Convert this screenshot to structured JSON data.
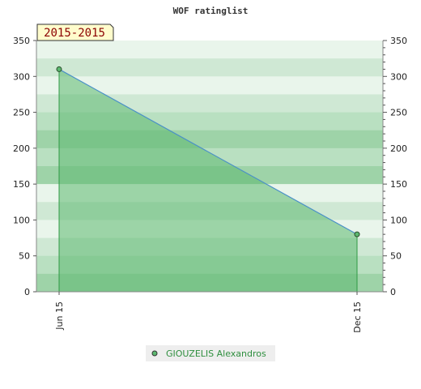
{
  "chart_data": {
    "type": "area",
    "title": "WOF ratinglist",
    "badge": "2015-2015",
    "x_categories": [
      "Jun 15",
      "Dec 15"
    ],
    "series": [
      {
        "name": "GIOUZELIS Alexandros",
        "x": [
          "Jun 15",
          "Dec 15"
        ],
        "values": [
          310,
          80
        ],
        "color": "#4a90c8",
        "fill_color": "#5cb870",
        "marker_color": "#3a8a4a"
      }
    ],
    "ylim": [
      0,
      350
    ],
    "y_ticks": [
      0,
      50,
      100,
      150,
      200,
      250,
      300,
      350
    ],
    "y_ticks_right": [
      0,
      50,
      100,
      150,
      200,
      250,
      300,
      350
    ],
    "grid": true,
    "legend_position": "bottom",
    "band_colors": [
      "#cfe8d4",
      "#e9f5eb",
      "#9ed3a8",
      "#b9e0c1"
    ]
  }
}
